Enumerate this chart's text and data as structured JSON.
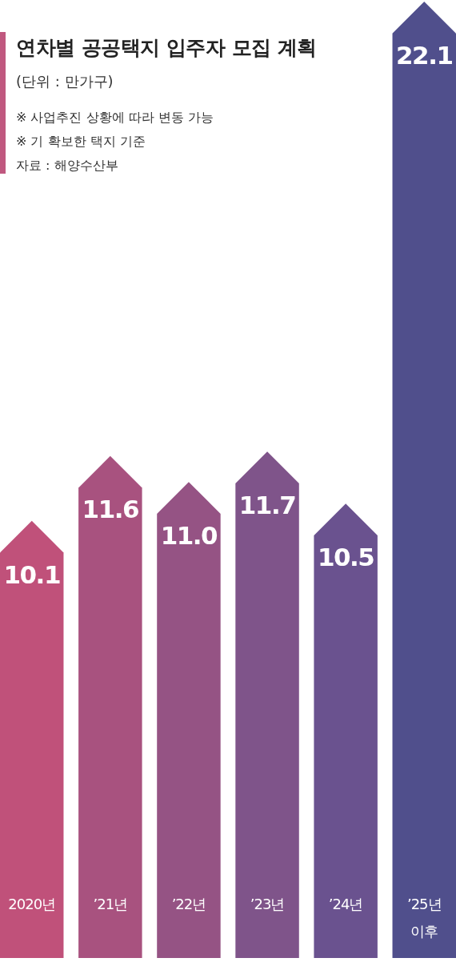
{
  "chart_data": {
    "type": "bar",
    "title": "연차별 공공택지 입주자 모집 계획",
    "subtitle": "(단위 : 만가구)",
    "annotations": [
      "※ 사업추진 상황에 따라 변동 가능",
      "※ 기 확보한 택지 기준",
      "자료 : 해양수산부"
    ],
    "categories": [
      "2020년",
      "’21년",
      "’22년",
      "’23년",
      "’24년",
      "’25년\n이후"
    ],
    "values": [
      10.1,
      11.6,
      11.0,
      11.7,
      10.5,
      22.1
    ],
    "colors": [
      "#c0517a",
      "#a8527f",
      "#955384",
      "#7f548a",
      "#6a528f",
      "#504f8c"
    ],
    "value_labels": [
      "10.1",
      "11.6",
      "11.0",
      "11.7",
      "10.5",
      "22.1"
    ]
  }
}
